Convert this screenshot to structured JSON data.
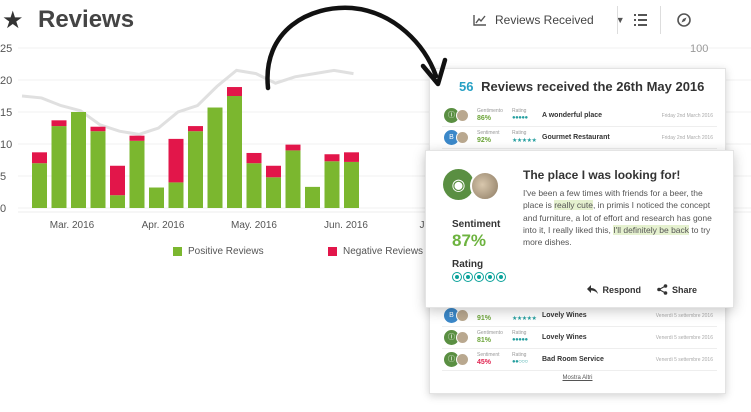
{
  "header": {
    "title": "Reviews",
    "dropdown_label": "Reviews Received",
    "icons": [
      "star-icon",
      "chart-line-icon",
      "list-icon",
      "compass-icon"
    ]
  },
  "chart_data": {
    "type": "bar",
    "y_left_ticks": [
      "25",
      "20",
      "15",
      "10",
      "5",
      "0"
    ],
    "y_right_ticks": [
      "100"
    ],
    "ylim": [
      0,
      25
    ],
    "x_tick_labels": [
      "Mar. 2016",
      "Apr. 2016",
      "May. 2016",
      "Jun. 2016",
      "J"
    ],
    "positive": [
      7,
      12.8,
      15,
      12,
      2,
      10.5,
      3.2,
      4,
      12,
      15.7,
      17.5,
      7,
      4.8,
      9,
      3.3,
      7.3,
      7.2
    ],
    "negative": [
      1.7,
      0.9,
      0,
      0.7,
      4.6,
      0.8,
      0,
      6.8,
      0.8,
      0,
      1.4,
      1.6,
      1.8,
      0.9,
      0,
      1.1,
      1.5
    ],
    "trend": [
      17.5,
      17.2,
      16,
      15.2,
      13,
      12,
      11.5,
      12.5,
      15,
      16,
      19,
      21.5,
      21,
      19.5,
      20.5,
      21,
      21.5,
      21
    ],
    "legend": [
      "Positive Reviews",
      "Negative Reviews"
    ],
    "colors": {
      "positive": "#7bb72f",
      "negative": "#e2164a",
      "trend": "#e0e0e0"
    }
  },
  "panel": {
    "count": "56",
    "title": "Reviews received the 26th May 2016",
    "rows_top": [
      {
        "avatar": "Ⓘ",
        "sent_label": "Gentimento",
        "sentiment": "86%",
        "rating_label": "Rating",
        "rating": "●●●●●",
        "name": "A wonderful place",
        "date": "Friday 2nd March 2016",
        "neg": false,
        "blue": false
      },
      {
        "avatar": "B",
        "sent_label": "Sentiment",
        "sentiment": "92%",
        "rating_label": "Rating",
        "rating": "★★★★★",
        "name": "Gourmet Restaurant",
        "date": "Friday 2nd March 2016",
        "neg": false,
        "blue": true
      }
    ],
    "rows_bottom": [
      {
        "avatar": "B",
        "sent_label": "",
        "sentiment": "91%",
        "rating_label": "",
        "rating": "★★★★★",
        "name": "Lovely Wines",
        "date": "Venerdi 5 settembre 2016",
        "neg": false,
        "blue": true
      },
      {
        "avatar": "Ⓘ",
        "sent_label": "Gentimento",
        "sentiment": "81%",
        "rating_label": "Rating",
        "rating": "●●●●●",
        "name": "Lovely Wines",
        "date": "Venerdi 5 settembre 2016",
        "neg": false,
        "blue": false
      },
      {
        "avatar": "Ⓘ",
        "sent_label": "Sentiment",
        "sentiment": "45%",
        "rating_label": "Rating",
        "rating": "●●○○○",
        "name": "Bad Room Service",
        "date": "Venerdi 5 settembre 2016",
        "neg": true,
        "blue": false
      }
    ],
    "more": "Mostra Altri"
  },
  "popup": {
    "title": "The place I was looking for!",
    "text_1": "I've been a few times with friends for a beer, the place is ",
    "highlight_1": "really cute",
    "text_2": ", in primis I noticed the concept and furniture, a lot of effort and research has gone into it, I really liked this, ",
    "highlight_2": "I'll definitely be back",
    "text_3": " to try more dishes.",
    "sentiment_label": "Sentiment",
    "sentiment": "87%",
    "rating_label": "Rating",
    "rating_value": 5,
    "respond": "Respond",
    "share": "Share"
  }
}
